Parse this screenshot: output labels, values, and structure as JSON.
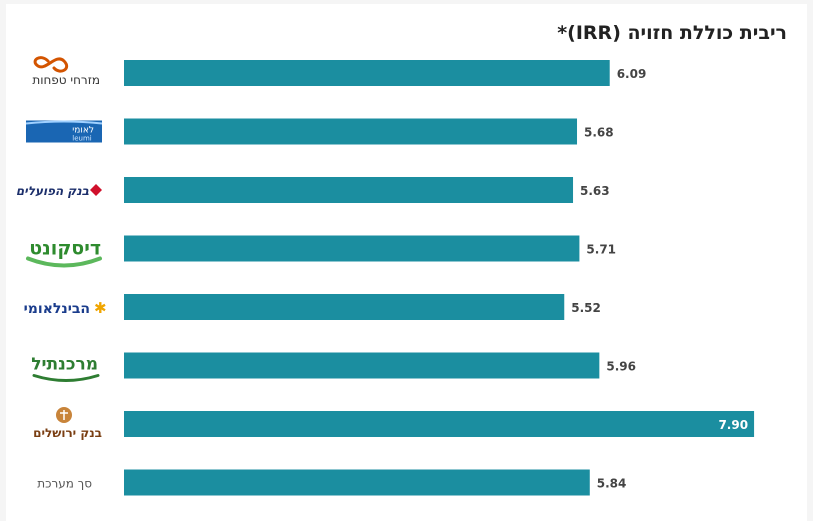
{
  "colors": {
    "bar": "#1b8ea0",
    "label": "#444444",
    "label_inside": "#ffffff"
  },
  "chart_data": {
    "type": "bar",
    "orientation": "horizontal",
    "title": "ריבית כוללת חזויה (IRR)*",
    "categories": [
      "מזרחי טפחות",
      "לאומי",
      "בנק הפועלים",
      "דיסקונט",
      "הבינלאומי",
      "מרכנתיל",
      "בנק ירושלים",
      "סך מערכת"
    ],
    "logo_subtext": {
      "1": "leumi"
    },
    "values": [
      6.09,
      5.68,
      5.63,
      5.71,
      5.52,
      5.96,
      7.9,
      5.84
    ],
    "value_labels": [
      "6.09",
      "5.68",
      "5.63",
      "5.71",
      "5.52",
      "5.96",
      "7.90",
      "5.84"
    ],
    "xlim": [
      0,
      8.2
    ],
    "grid": false,
    "legend": "none"
  }
}
